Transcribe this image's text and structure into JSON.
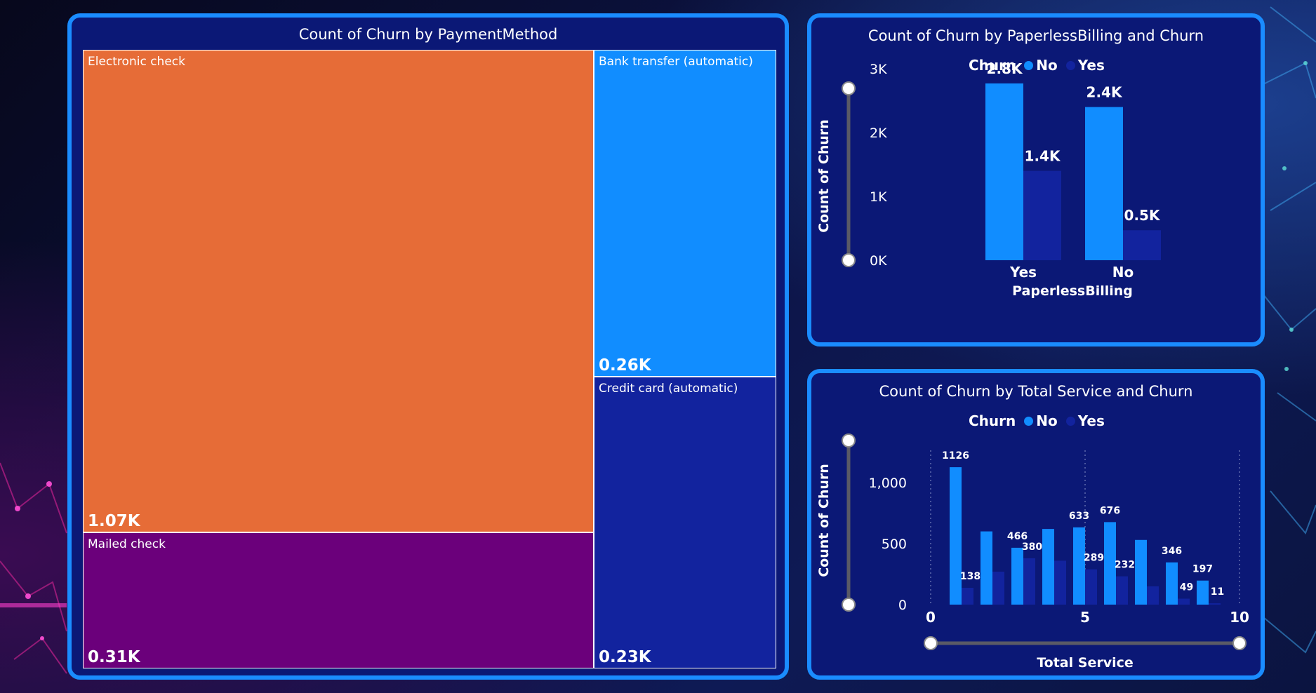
{
  "colors": {
    "no": "#118dff",
    "yes": "#12239e",
    "electronic": "#e66c37",
    "mailed": "#6b007b",
    "bank": "#118dff",
    "credit": "#12239e"
  },
  "treemap": {
    "title": "Count of Churn by PaymentMethod",
    "chart_data": {
      "type": "treemap",
      "items": [
        {
          "label": "Electronic check",
          "value": 1071,
          "display": "1.07K"
        },
        {
          "label": "Mailed check",
          "value": 308,
          "display": "0.31K"
        },
        {
          "label": "Bank transfer (automatic)",
          "value": 258,
          "display": "0.26K"
        },
        {
          "label": "Credit card (automatic)",
          "value": 232,
          "display": "0.23K"
        }
      ]
    }
  },
  "paperless": {
    "title": "Count of Churn by PaperlessBilling and Churn",
    "legend": {
      "title": "Churn",
      "items": [
        "No",
        "Yes"
      ]
    },
    "chart_data": {
      "type": "bar",
      "categories": [
        "Yes",
        "No"
      ],
      "series": [
        {
          "name": "No",
          "values": [
            2770,
            2400
          ],
          "labels": [
            "2.8K",
            "2.4K"
          ]
        },
        {
          "name": "Yes",
          "values": [
            1400,
            470
          ],
          "labels": [
            "1.4K",
            "0.5K"
          ]
        }
      ],
      "xlabel": "PaperlessBilling",
      "ylabel": "Count of Churn",
      "ylim": [
        0,
        3000
      ],
      "yticks": [
        0,
        1000,
        2000,
        3000
      ],
      "ytick_labels": [
        "0K",
        "1K",
        "2K",
        "3K"
      ]
    }
  },
  "service": {
    "title": "Count of Churn by Total Service and Churn",
    "legend": {
      "title": "Churn",
      "items": [
        "No",
        "Yes"
      ]
    },
    "chart_data": {
      "type": "bar",
      "x": [
        1,
        2,
        3,
        4,
        5,
        6,
        7,
        8,
        9
      ],
      "series": [
        {
          "name": "No",
          "values": [
            1126,
            600,
            466,
            620,
            633,
            676,
            530,
            346,
            197
          ],
          "labels": [
            "1126",
            "",
            "466",
            "",
            "633",
            "676",
            "",
            "346",
            "197"
          ]
        },
        {
          "name": "Yes",
          "values": [
            138,
            270,
            380,
            360,
            289,
            232,
            150,
            49,
            11
          ],
          "labels": [
            "138",
            "",
            "380",
            "",
            "289",
            "232",
            "",
            "49",
            "11"
          ]
        }
      ],
      "xlabel": "Total Service",
      "ylabel": "Count of Churn",
      "xlim": [
        0,
        10
      ],
      "xticks": [
        0,
        5,
        10
      ],
      "xtick_labels": [
        "0",
        "5",
        "10"
      ],
      "ylim": [
        0,
        1300
      ],
      "yticks": [
        0,
        500,
        1000
      ],
      "ytick_labels": [
        "0",
        "500",
        "1,000"
      ]
    }
  }
}
